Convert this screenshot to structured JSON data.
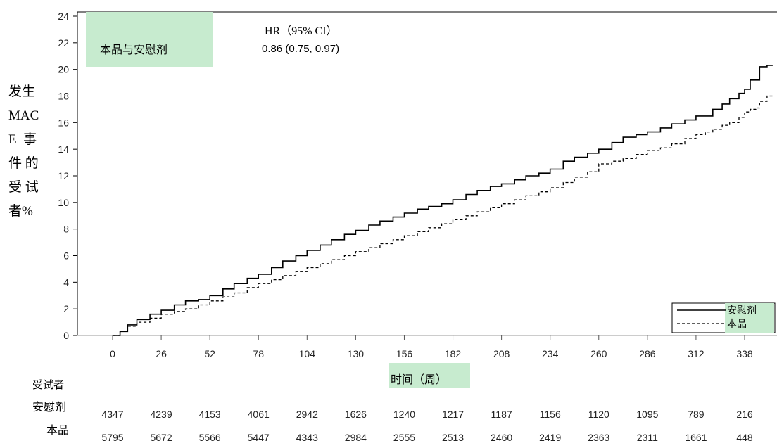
{
  "chart_data": {
    "type": "line",
    "title": "",
    "ylabel_lines": [
      "发生",
      "MAC",
      "E  事",
      "件 的",
      "受 试",
      "者%"
    ],
    "xlabel": "时间（周）",
    "xlim": [
      -26,
      353
    ],
    "ylim": [
      0,
      24.5
    ],
    "x_ticks": [
      0,
      26,
      52,
      78,
      104,
      130,
      156,
      182,
      208,
      234,
      260,
      286,
      312,
      338
    ],
    "y_ticks": [
      0,
      2,
      4,
      6,
      8,
      10,
      12,
      14,
      16,
      18,
      20,
      22,
      24
    ],
    "comparison_label": "本品与安慰剂",
    "hr_title": "HR（95% CI）",
    "hr_value": "0.86 (0.75, 0.97)",
    "legend_position": "bottom-right",
    "grid": false,
    "series": [
      {
        "name": "安慰剂",
        "style": "solid",
        "x": [
          0,
          4,
          8,
          13,
          20,
          26,
          33,
          39,
          46,
          52,
          59,
          65,
          72,
          78,
          85,
          91,
          98,
          104,
          111,
          117,
          124,
          130,
          137,
          143,
          150,
          156,
          163,
          169,
          176,
          182,
          189,
          195,
          202,
          208,
          215,
          221,
          228,
          234,
          241,
          247,
          254,
          260,
          267,
          273,
          280,
          286,
          293,
          299,
          306,
          312,
          317,
          321,
          326,
          330,
          335,
          338,
          341,
          344,
          346,
          348,
          350,
          353
        ],
        "y": [
          0,
          0.3,
          0.8,
          1.2,
          1.6,
          1.9,
          2.3,
          2.6,
          2.7,
          3.0,
          3.5,
          3.9,
          4.3,
          4.6,
          5.1,
          5.6,
          6.0,
          6.4,
          6.8,
          7.2,
          7.6,
          7.9,
          8.3,
          8.6,
          8.9,
          9.2,
          9.5,
          9.7,
          9.9,
          10.2,
          10.6,
          10.9,
          11.2,
          11.4,
          11.7,
          12.0,
          12.2,
          12.5,
          13.1,
          13.4,
          13.7,
          14.0,
          14.5,
          14.9,
          15.1,
          15.3,
          15.6,
          15.9,
          16.2,
          16.5,
          16.5,
          17.0,
          17.4,
          17.8,
          18.2,
          18.5,
          19.2,
          19.2,
          20.2,
          20.2,
          20.3,
          20.3
        ]
      },
      {
        "name": "本品",
        "style": "dashed",
        "x": [
          0,
          4,
          8,
          13,
          20,
          26,
          33,
          39,
          46,
          52,
          59,
          65,
          72,
          78,
          85,
          91,
          98,
          104,
          111,
          117,
          124,
          130,
          137,
          143,
          150,
          156,
          163,
          169,
          176,
          182,
          189,
          195,
          202,
          208,
          215,
          221,
          228,
          234,
          241,
          247,
          254,
          260,
          267,
          273,
          280,
          286,
          293,
          299,
          306,
          312,
          317,
          321,
          326,
          330,
          335,
          338,
          341,
          344,
          346,
          348,
          350,
          353
        ],
        "y": [
          0,
          0.3,
          0.7,
          1.0,
          1.3,
          1.6,
          1.8,
          2.0,
          2.3,
          2.6,
          2.9,
          3.2,
          3.6,
          3.9,
          4.2,
          4.5,
          4.8,
          5.1,
          5.4,
          5.7,
          6.0,
          6.3,
          6.6,
          6.9,
          7.2,
          7.5,
          7.8,
          8.1,
          8.4,
          8.7,
          9.0,
          9.3,
          9.6,
          9.9,
          10.2,
          10.5,
          10.8,
          11.1,
          11.5,
          11.9,
          12.3,
          12.9,
          13.1,
          13.3,
          13.6,
          13.9,
          14.1,
          14.4,
          14.8,
          15.1,
          15.3,
          15.5,
          15.8,
          16.0,
          16.4,
          16.8,
          17.0,
          17.1,
          17.6,
          17.6,
          18.0,
          18.0
        ]
      }
    ],
    "risk_table": {
      "header": "受试者",
      "rows": [
        {
          "label": "安慰剂",
          "values": [
            "4347",
            "4239",
            "4153",
            "4061",
            "2942",
            "1626",
            "1240",
            "1217",
            "1187",
            "1156",
            "1120",
            "1095",
            "789",
            "216"
          ]
        },
        {
          "label": "本品",
          "values": [
            "5795",
            "5672",
            "5566",
            "5447",
            "4343",
            "2984",
            "2555",
            "2513",
            "2460",
            "2419",
            "2363",
            "2311",
            "1661",
            "448"
          ]
        }
      ]
    }
  }
}
